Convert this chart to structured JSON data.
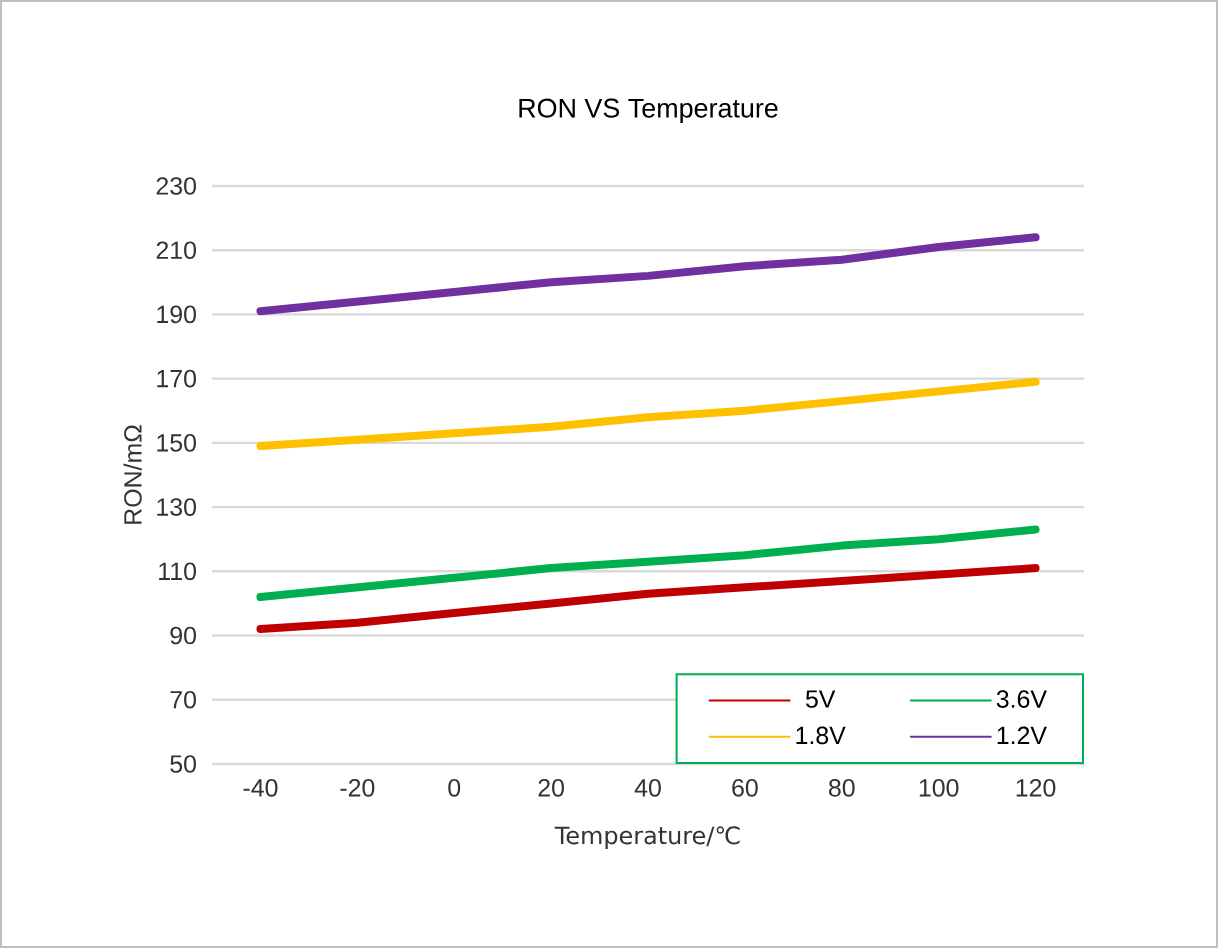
{
  "chart_data": {
    "type": "line",
    "title": "RON VS Temperature",
    "xlabel": "Temperature/℃",
    "ylabel": "RON/mΩ",
    "categories": [
      "-40",
      "-20",
      "0",
      "20",
      "40",
      "60",
      "80",
      "100",
      "120"
    ],
    "series": [
      {
        "name": "5V",
        "color": "#c00000",
        "values": [
          92,
          94,
          97,
          100,
          103,
          105,
          107,
          109,
          111
        ]
      },
      {
        "name": "3.6V",
        "color": "#00b050",
        "values": [
          102,
          105,
          108,
          111,
          113,
          115,
          118,
          120,
          123
        ]
      },
      {
        "name": "1.8V",
        "color": "#ffc000",
        "values": [
          149,
          151,
          153,
          155,
          158,
          160,
          163,
          166,
          169
        ]
      },
      {
        "name": "1.2V",
        "color": "#7030a0",
        "values": [
          191,
          194,
          197,
          200,
          202,
          205,
          207,
          211,
          214
        ]
      }
    ],
    "ylim": [
      50,
      230
    ],
    "yticks": [
      50,
      70,
      90,
      110,
      130,
      150,
      170,
      190,
      210,
      230
    ],
    "grid": "y",
    "legend": "bottom right",
    "line_style": "solid"
  }
}
